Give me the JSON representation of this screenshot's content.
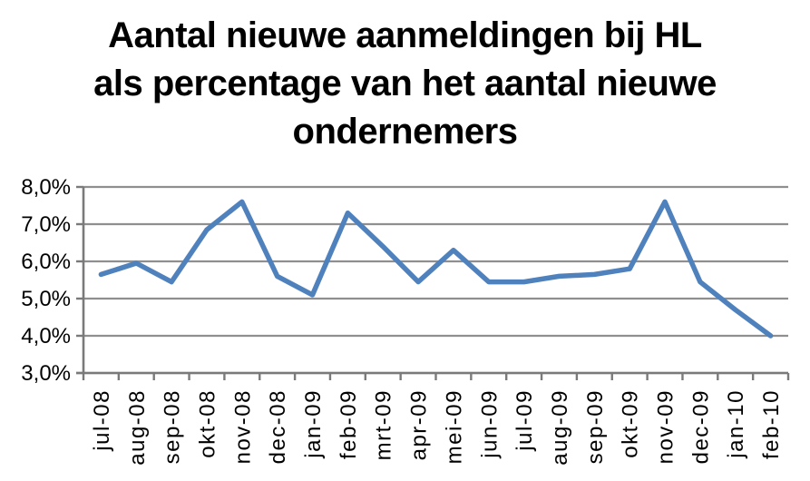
{
  "chart_data": {
    "type": "line",
    "title": "Aantal nieuwe aanmeldingen bij HL als percentage van het aantal nieuwe ondernemers",
    "title_lines": [
      "Aantal nieuwe aanmeldingen bij HL",
      "als percentage van het aantal nieuwe",
      "ondernemers"
    ],
    "categories": [
      "jul-08",
      "aug-08",
      "sep-08",
      "okt-08",
      "nov-08",
      "dec-08",
      "jan-09",
      "feb-09",
      "mrt-09",
      "apr-09",
      "mei-09",
      "jun-09",
      "jul-09",
      "aug-09",
      "sep-09",
      "okt-09",
      "nov-09",
      "dec-09",
      "jan-10",
      "feb-10"
    ],
    "values": [
      5.65,
      5.95,
      5.45,
      6.85,
      7.6,
      5.6,
      5.1,
      7.3,
      6.4,
      5.45,
      6.3,
      5.45,
      5.45,
      5.6,
      5.65,
      5.8,
      7.6,
      5.45,
      4.7,
      4.0
    ],
    "y_tick_labels": [
      "3,0%",
      "4,0%",
      "5,0%",
      "6,0%",
      "7,0%",
      "8,0%"
    ],
    "y_tick_values": [
      3,
      4,
      5,
      6,
      7,
      8
    ],
    "ylim": [
      3,
      8
    ],
    "xlabel": "",
    "ylabel": "",
    "grid": true,
    "legend": false,
    "colors": {
      "series": "#4F81BD",
      "gridline": "#8F8F8F",
      "axis": "#7A7A7A",
      "text": "#000000",
      "background": "#FFFFFF"
    }
  }
}
